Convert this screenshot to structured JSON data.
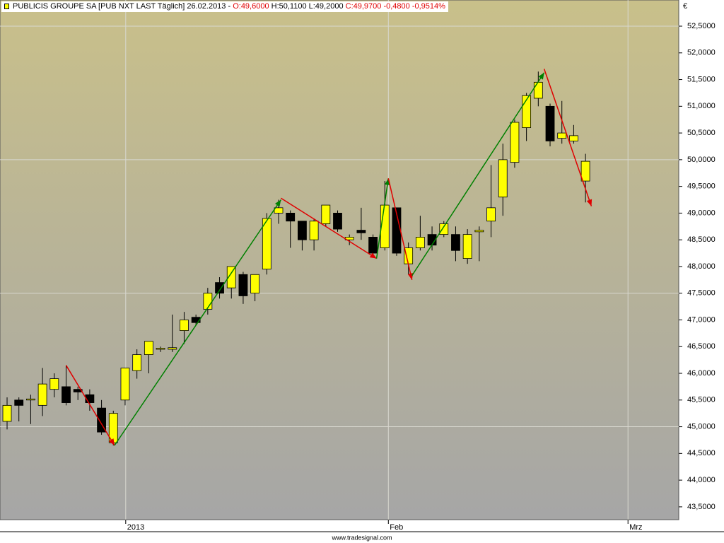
{
  "chart_data": {
    "type": "candlestick",
    "header": {
      "parts": [
        {
          "text": "PUBLICIS GROUPE SA [PUB NXT LAST Täglich] 26.02.2013 - ",
          "color": "#000000"
        },
        {
          "text": "O:49,6000",
          "color": "#e00000"
        },
        {
          "text": " H:50,1100 L:49,2000 ",
          "color": "#000000"
        },
        {
          "text": "C:49,9700 -0,4800 -0,9514%",
          "color": "#e00000"
        }
      ]
    },
    "currency": "€",
    "footer": "www.tradesignal.com",
    "up_color": "#ffff00",
    "down_color": "#000000",
    "open": [
      45.1,
      45.5,
      45.5,
      45.4,
      45.7,
      45.75,
      45.7,
      45.6,
      45.35,
      44.7,
      45.5,
      46.05,
      46.35,
      46.45,
      46.45,
      46.8,
      47.05,
      47.2,
      47.7,
      47.6,
      47.85,
      47.5,
      47.95,
      49.0,
      49.0,
      48.85,
      48.5,
      48.8,
      49.0,
      48.5,
      48.68,
      48.55,
      48.35,
      49.1,
      48.05,
      48.35,
      48.6,
      48.6,
      48.6,
      48.15,
      48.65,
      48.85,
      49.3,
      49.95,
      50.6,
      51.15,
      51.0,
      50.4,
      50.35,
      49.6
    ],
    "high": [
      45.55,
      45.55,
      45.6,
      46.1,
      46.0,
      46.15,
      45.75,
      45.7,
      45.5,
      45.3,
      46.1,
      46.45,
      46.6,
      46.5,
      47.1,
      47.15,
      47.1,
      47.6,
      47.8,
      48.0,
      47.9,
      47.85,
      49.0,
      49.25,
      49.05,
      48.85,
      48.9,
      49.15,
      49.05,
      48.6,
      49.1,
      48.6,
      49.6,
      49.1,
      48.45,
      48.95,
      48.75,
      48.85,
      48.75,
      48.7,
      48.75,
      49.9,
      50.3,
      50.75,
      51.25,
      51.65,
      51.05,
      51.1,
      50.65,
      50.11
    ],
    "low": [
      44.95,
      45.1,
      45.05,
      45.2,
      45.55,
      45.4,
      45.5,
      45.3,
      44.85,
      44.65,
      45.4,
      45.9,
      46.0,
      46.4,
      46.4,
      46.55,
      46.9,
      47.1,
      47.4,
      47.4,
      47.3,
      47.35,
      47.85,
      48.8,
      48.35,
      48.3,
      48.3,
      48.75,
      48.65,
      48.4,
      48.5,
      48.2,
      48.3,
      48.2,
      47.85,
      48.3,
      48.3,
      48.55,
      48.1,
      48.05,
      48.1,
      48.55,
      48.95,
      49.85,
      50.35,
      51.0,
      50.25,
      50.3,
      50.3,
      49.2
    ],
    "close": [
      45.4,
      45.4,
      45.52,
      45.8,
      45.9,
      45.45,
      45.65,
      45.45,
      44.9,
      45.25,
      46.1,
      46.35,
      46.6,
      46.47,
      46.48,
      47.0,
      46.95,
      47.5,
      47.5,
      48.0,
      47.45,
      47.85,
      48.9,
      49.1,
      48.85,
      48.5,
      48.85,
      49.15,
      48.7,
      48.55,
      48.63,
      48.25,
      49.15,
      48.25,
      48.35,
      48.55,
      48.4,
      48.8,
      48.3,
      48.6,
      48.68,
      49.1,
      50.0,
      50.7,
      51.2,
      51.45,
      50.35,
      50.5,
      50.45,
      49.97
    ],
    "trend_arrows": [
      {
        "color": "#e00000",
        "x": [
          5,
          9.1
        ],
        "y": [
          46.15,
          44.65
        ]
      },
      {
        "color": "#008000",
        "x": [
          9.1,
          23.2
        ],
        "y": [
          44.65,
          49.25
        ]
      },
      {
        "color": "#e00000",
        "x": [
          23.2,
          31.3
        ],
        "y": [
          49.28,
          48.15
        ]
      },
      {
        "color": "#008000",
        "x": [
          31.3,
          32.3
        ],
        "y": [
          48.15,
          49.65
        ]
      },
      {
        "color": "#e00000",
        "x": [
          32.3,
          34.3
        ],
        "y": [
          49.65,
          47.75
        ]
      },
      {
        "color": "#008000",
        "x": [
          34.3,
          45.5
        ],
        "y": [
          47.83,
          51.63
        ]
      },
      {
        "color": "#e00000",
        "x": [
          45.5,
          49.5
        ],
        "y": [
          51.7,
          49.13
        ]
      }
    ],
    "xlim": [
      -0.6,
      56.9
    ],
    "xticks": [
      {
        "value": 10.05,
        "label": "2013"
      },
      {
        "value": 32.3,
        "label": "Feb"
      },
      {
        "value": 52.6,
        "label": "Mrz"
      }
    ],
    "ylim": [
      43.26,
      52.99
    ],
    "yticks": [
      {
        "value": 43.5,
        "label": "43,5000"
      },
      {
        "value": 44,
        "label": "44,0000"
      },
      {
        "value": 44.5,
        "label": "44,5000"
      },
      {
        "value": 45,
        "label": "45,0000"
      },
      {
        "value": 45.5,
        "label": "45,5000"
      },
      {
        "value": 46,
        "label": "46,0000"
      },
      {
        "value": 46.5,
        "label": "46,5000"
      },
      {
        "value": 47,
        "label": "47,0000"
      },
      {
        "value": 47.5,
        "label": "47,5000"
      },
      {
        "value": 48,
        "label": "48,0000"
      },
      {
        "value": 48.5,
        "label": "48,5000"
      },
      {
        "value": 49,
        "label": "49,0000"
      },
      {
        "value": 49.5,
        "label": "49,5000"
      },
      {
        "value": 50,
        "label": "50,0000"
      },
      {
        "value": 50.5,
        "label": "50,5000"
      },
      {
        "value": 51,
        "label": "51,0000"
      },
      {
        "value": 51.5,
        "label": "51,5000"
      },
      {
        "value": 52,
        "label": "52,0000"
      },
      {
        "value": 52.5,
        "label": "52,5000"
      }
    ],
    "grid_step": 2.5
  }
}
